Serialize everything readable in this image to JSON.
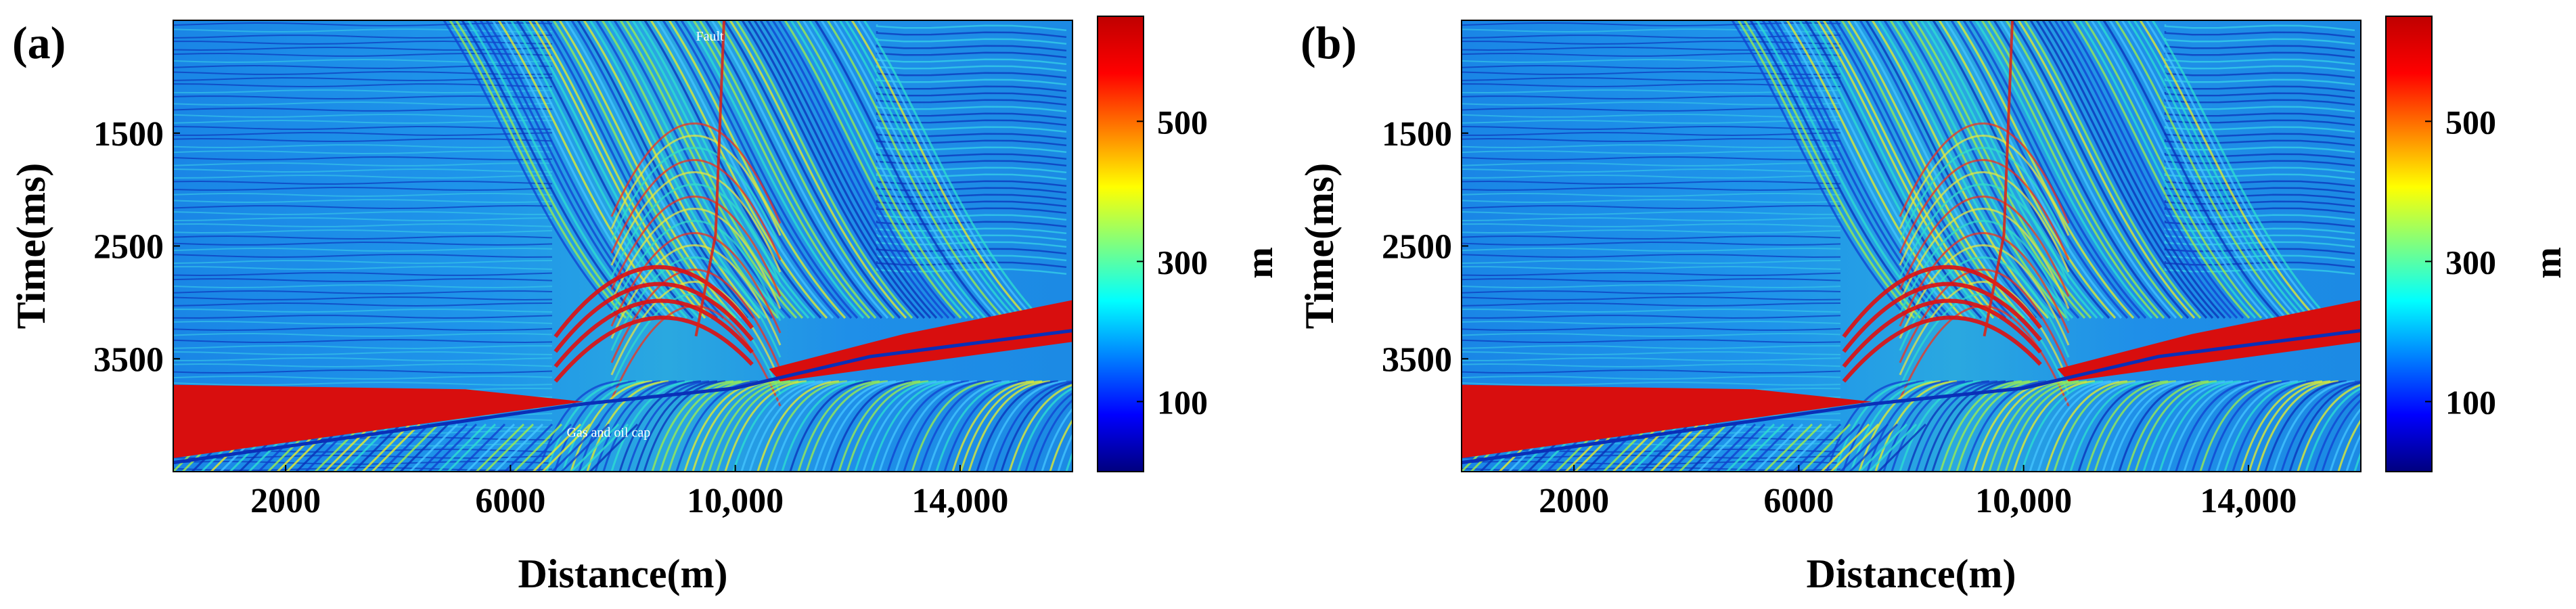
{
  "chart_data": [
    {
      "type": "heatmap",
      "panel_label": "(a)",
      "xlabel": "Distance(m)",
      "ylabel": "Time(ms)",
      "x_ticks": [
        2000,
        6000,
        10000,
        14000
      ],
      "x_tick_labels": [
        "2000",
        "6000",
        "10,000",
        "14,000"
      ],
      "xlim": [
        0,
        16000
      ],
      "y_ticks": [
        1500,
        2500,
        3500
      ],
      "y_tick_labels": [
        "1500",
        "2500",
        "3500"
      ],
      "ylim": [
        500,
        4500
      ],
      "colorbar": {
        "label": "m",
        "ticks": [
          100,
          300,
          500
        ],
        "tick_labels": [
          "100",
          "300",
          "500"
        ],
        "range": [
          0,
          650
        ],
        "colormap": [
          "#00007f",
          "#0000ff",
          "#007fff",
          "#00ffff",
          "#7fff7f",
          "#ffff00",
          "#ff7f00",
          "#ff0000",
          "#bf0000"
        ]
      },
      "annotations": [
        "Fault",
        "Gas and oil cap"
      ]
    },
    {
      "type": "heatmap",
      "panel_label": "(b)",
      "xlabel": "Distance(m)",
      "ylabel": "Time(ms)",
      "x_ticks": [
        2000,
        6000,
        10000,
        14000
      ],
      "x_tick_labels": [
        "2000",
        "6000",
        "10,000",
        "14,000"
      ],
      "xlim": [
        0,
        16000
      ],
      "y_ticks": [
        1500,
        2500,
        3500
      ],
      "y_tick_labels": [
        "1500",
        "2500",
        "3500"
      ],
      "ylim": [
        500,
        4500
      ],
      "colorbar": {
        "label": "m",
        "ticks": [
          100,
          300,
          500
        ],
        "tick_labels": [
          "100",
          "300",
          "500"
        ],
        "range": [
          0,
          650
        ],
        "colormap": [
          "#00007f",
          "#0000ff",
          "#007fff",
          "#00ffff",
          "#7fff7f",
          "#ffff00",
          "#ff7f00",
          "#ff0000",
          "#bf0000"
        ]
      },
      "annotations": []
    }
  ]
}
